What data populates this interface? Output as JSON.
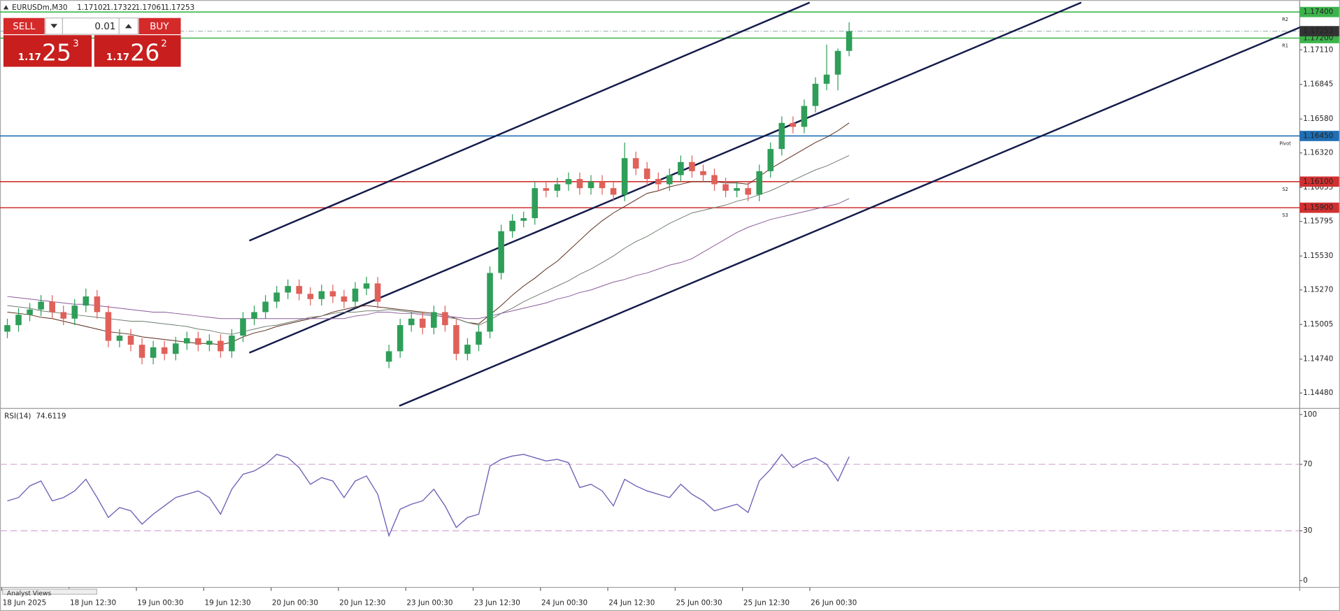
{
  "header": {
    "symbol": "EURUSDm,M30"
  },
  "trade_panel": {
    "sell": "SELL",
    "buy": "BUY",
    "lot": "0.01",
    "sell_price": {
      "lead": "1.17",
      "pips": "25",
      "point": "3"
    },
    "buy_price": {
      "lead": "1.17",
      "pips": "26",
      "point": "2"
    }
  },
  "tab": "Analyst Views",
  "chart_data": [
    {
      "type": "candlestick",
      "ylim": [
        1.14368,
        1.17492
      ],
      "yticks": [
        {
          "value": 1.1711,
          "label": "1.17110"
        },
        1.16845,
        {
          "value": 1.1658,
          "label": "1.16580"
        },
        {
          "value": 1.1632,
          "label": "1.16320"
        },
        1.16055,
        1.15795,
        {
          "value": 1.1553,
          "label": "1.15530"
        },
        {
          "value": 1.1527,
          "label": "1.15270"
        },
        1.15005,
        {
          "value": 1.1474,
          "label": "1.14740"
        },
        {
          "value": 1.1448,
          "label": "1.14480"
        }
      ],
      "current_price_color": "#333333",
      "levels": [
        {
          "value": 1.174,
          "label": "1.17400",
          "tag": "R2",
          "color": "#3cb44b"
        },
        {
          "value": 1.172,
          "label": "1.17200",
          "tag": "R1",
          "color": "#3cb44b"
        },
        {
          "value": 1.1645,
          "label": "1.16450",
          "tag": "Pivot",
          "color": "#1f6fb5"
        },
        {
          "value": 1.161,
          "label": "1.16100",
          "tag": "S2",
          "color": "#d03030"
        },
        {
          "value": 1.159,
          "label": "1.15900",
          "tag": "S3",
          "color": "#d03030"
        }
      ],
      "series": [
        {
          "up_color": "#2e9e58",
          "down_color": "#e0605a",
          "open": [
            1.1495,
            1.15,
            1.1508,
            1.1512,
            1.1518,
            1.151,
            1.1505,
            1.1515,
            1.1522,
            1.151,
            1.1488,
            1.1492,
            1.1485,
            1.1475,
            1.1483,
            1.1478,
            1.1486,
            1.149,
            1.1485,
            1.1488,
            1.148,
            1.1492,
            1.1505,
            1.151,
            1.1518,
            1.1525,
            1.153,
            1.1524,
            1.152,
            1.1526,
            1.1522,
            1.1518,
            1.1528,
            1.1532,
            1.1472,
            1.148,
            1.15,
            1.1505,
            1.1498,
            1.151,
            1.15,
            1.1478,
            1.1485,
            1.1495,
            1.154,
            1.1572,
            1.158,
            1.1582,
            1.1605,
            1.1603,
            1.1608,
            1.1612,
            1.1605,
            1.161,
            1.1605,
            1.16,
            1.1628,
            1.162,
            1.1612,
            1.1608,
            1.1615,
            1.1625,
            1.1618,
            1.1615,
            1.1608,
            1.1603,
            1.1605,
            1.16,
            1.1618,
            1.1635,
            1.1655,
            1.1652,
            1.1668,
            1.1685,
            1.1692,
            1.17102
          ],
          "high": [
            1.1505,
            1.1513,
            1.1517,
            1.1523,
            1.1523,
            1.1515,
            1.152,
            1.1528,
            1.1527,
            1.1515,
            1.1497,
            1.1497,
            1.149,
            1.1488,
            1.1488,
            1.1491,
            1.1495,
            1.1495,
            1.1493,
            1.1493,
            1.1497,
            1.151,
            1.1515,
            1.1523,
            1.153,
            1.1535,
            1.1535,
            1.1529,
            1.1531,
            1.1531,
            1.1527,
            1.1533,
            1.1537,
            1.1537,
            1.1485,
            1.1505,
            1.151,
            1.151,
            1.1515,
            1.1515,
            1.1505,
            1.149,
            1.15,
            1.1545,
            1.1577,
            1.1585,
            1.1587,
            1.161,
            1.161,
            1.1613,
            1.1617,
            1.1617,
            1.1615,
            1.1615,
            1.161,
            1.164,
            1.1633,
            1.1625,
            1.1617,
            1.162,
            1.163,
            1.163,
            1.1623,
            1.162,
            1.1613,
            1.161,
            1.161,
            1.1623,
            1.164,
            1.166,
            1.166,
            1.1673,
            1.169,
            1.1715,
            1.1712,
            1.17322
          ],
          "low": [
            1.149,
            1.1495,
            1.1503,
            1.1507,
            1.1505,
            1.15,
            1.15,
            1.151,
            1.1505,
            1.1483,
            1.1483,
            1.148,
            1.147,
            1.147,
            1.1473,
            1.1473,
            1.1481,
            1.148,
            1.148,
            1.1475,
            1.1475,
            1.1487,
            1.15,
            1.1505,
            1.1513,
            1.152,
            1.1519,
            1.1515,
            1.1515,
            1.1517,
            1.1513,
            1.1513,
            1.1523,
            1.1513,
            1.1467,
            1.1475,
            1.1495,
            1.1493,
            1.1493,
            1.1495,
            1.1473,
            1.1473,
            1.148,
            1.149,
            1.1535,
            1.1567,
            1.1575,
            1.1577,
            1.1598,
            1.1598,
            1.1603,
            1.16,
            1.16,
            1.16,
            1.1595,
            1.1595,
            1.1615,
            1.1607,
            1.1603,
            1.1603,
            1.161,
            1.1613,
            1.161,
            1.1603,
            1.1598,
            1.1598,
            1.1595,
            1.1595,
            1.1613,
            1.163,
            1.1647,
            1.1647,
            1.1663,
            1.168,
            1.168,
            1.17061
          ],
          "close": [
            1.15,
            1.1508,
            1.1512,
            1.1518,
            1.151,
            1.1505,
            1.1515,
            1.1522,
            1.151,
            1.1488,
            1.1492,
            1.1485,
            1.1475,
            1.1483,
            1.1478,
            1.1486,
            1.149,
            1.1485,
            1.1488,
            1.148,
            1.1492,
            1.1505,
            1.151,
            1.1518,
            1.1525,
            1.153,
            1.1524,
            1.152,
            1.1526,
            1.1522,
            1.1518,
            1.1528,
            1.1532,
            1.1518,
            1.148,
            1.15,
            1.1505,
            1.1498,
            1.151,
            1.15,
            1.1478,
            1.1485,
            1.1495,
            1.154,
            1.1572,
            1.158,
            1.1582,
            1.1605,
            1.1603,
            1.1608,
            1.1612,
            1.1605,
            1.161,
            1.1605,
            1.16,
            1.1628,
            1.162,
            1.1612,
            1.1608,
            1.1615,
            1.1625,
            1.1618,
            1.1615,
            1.1608,
            1.1603,
            1.1605,
            1.16,
            1.1618,
            1.1635,
            1.1655,
            1.1652,
            1.1668,
            1.1685,
            1.1692,
            1.17102,
            1.17253
          ]
        }
      ],
      "lines": [
        {
          "color": "#5a2a1a",
          "values": [
            1.151,
            1.1509,
            1.1508,
            1.1506,
            1.1505,
            1.1503,
            1.1501,
            1.1499,
            1.1497,
            1.1495,
            1.1494,
            1.1493,
            1.1491,
            1.149,
            1.1489,
            1.1488,
            1.1487,
            1.1486,
            1.1486,
            1.1485,
            1.1487,
            1.1491,
            1.1494,
            1.1496,
            1.1499,
            1.1501,
            1.1503,
            1.1505,
            1.1507,
            1.151,
            1.1512,
            1.1514,
            1.1515,
            1.1514,
            1.1513,
            1.1512,
            1.1511,
            1.151,
            1.1509,
            1.1508,
            1.1505,
            1.1502,
            1.1501,
            1.1508,
            1.1515,
            1.1523,
            1.153,
            1.1536,
            1.1543,
            1.1549,
            1.1557,
            1.1565,
            1.1573,
            1.158,
            1.1586,
            1.1591,
            1.1596,
            1.1601,
            1.1603,
            1.1606,
            1.1608,
            1.161,
            1.161,
            1.161,
            1.1609,
            1.1609,
            1.1608,
            1.1614,
            1.162,
            1.1625,
            1.163,
            1.1635,
            1.164,
            1.1644,
            1.1649,
            1.1655
          ]
        },
        {
          "color": "#6f7d6f",
          "values": [
            1.1515,
            1.1514,
            1.1513,
            1.1511,
            1.151,
            1.1509,
            1.1508,
            1.1507,
            1.1506,
            1.1505,
            1.1504,
            1.1503,
            1.1503,
            1.1502,
            1.1501,
            1.15,
            1.1499,
            1.1497,
            1.1496,
            1.1494,
            1.1493,
            1.1495,
            1.1497,
            1.1499,
            1.15,
            1.1502,
            1.1504,
            1.1506,
            1.1507,
            1.1509,
            1.151,
            1.151,
            1.1511,
            1.1511,
            1.1512,
            1.1511,
            1.151,
            1.1509,
            1.1508,
            1.1506,
            1.1505,
            1.1502,
            1.15,
            1.1504,
            1.1509,
            1.1513,
            1.1518,
            1.1522,
            1.1526,
            1.153,
            1.1534,
            1.1539,
            1.1543,
            1.1548,
            1.1553,
            1.1559,
            1.1564,
            1.1568,
            1.1573,
            1.1578,
            1.1582,
            1.1586,
            1.1588,
            1.159,
            1.1592,
            1.1595,
            1.1597,
            1.16,
            1.1603,
            1.1607,
            1.1611,
            1.1615,
            1.1619,
            1.1622,
            1.1626,
            1.163
          ]
        },
        {
          "color": "#8a5a9a",
          "values": [
            1.1522,
            1.1521,
            1.152,
            1.1519,
            1.1518,
            1.1517,
            1.1516,
            1.1516,
            1.1515,
            1.1514,
            1.1513,
            1.1512,
            1.1511,
            1.151,
            1.151,
            1.1509,
            1.1508,
            1.1507,
            1.1506,
            1.1505,
            1.1505,
            1.1505,
            1.1505,
            1.1505,
            1.1505,
            1.1505,
            1.1505,
            1.1505,
            1.1505,
            1.1505,
            1.1505,
            1.1507,
            1.1508,
            1.151,
            1.151,
            1.1509,
            1.1509,
            1.1508,
            1.1507,
            1.1507,
            1.1506,
            1.1505,
            1.1505,
            1.1507,
            1.1509,
            1.1511,
            1.1513,
            1.1515,
            1.1517,
            1.152,
            1.1522,
            1.1525,
            1.1527,
            1.153,
            1.1533,
            1.1535,
            1.1538,
            1.154,
            1.1543,
            1.1546,
            1.1548,
            1.1551,
            1.1556,
            1.1561,
            1.1566,
            1.1571,
            1.1575,
            1.1578,
            1.1581,
            1.1583,
            1.1585,
            1.1587,
            1.1589,
            1.1591,
            1.1593,
            1.1597
          ]
        }
      ]
    },
    {
      "type": "line",
      "title": "RSI(14)",
      "color": "#6c5fb5",
      "ylim": [
        -3.6,
        103.1
      ],
      "yticks": [
        0,
        30,
        70,
        100
      ],
      "dashed_levels": [
        30,
        70
      ],
      "level_color": "#d4a8d4",
      "categories": [
        "18 Jun 2025",
        null,
        null,
        null,
        null,
        null,
        "18 Jun 12:30",
        null,
        null,
        null,
        null,
        null,
        "19 Jun 00:30",
        null,
        null,
        null,
        null,
        null,
        "19 Jun 12:30",
        null,
        null,
        null,
        null,
        null,
        "20 Jun 00:30",
        null,
        null,
        null,
        null,
        null,
        "20 Jun 12:30",
        null,
        null,
        null,
        null,
        null,
        "23 Jun 00:30",
        null,
        null,
        null,
        null,
        null,
        "23 Jun 12:30",
        null,
        null,
        null,
        null,
        null,
        "24 Jun 00:30",
        null,
        null,
        null,
        null,
        null,
        "24 Jun 12:30",
        null,
        null,
        null,
        null,
        null,
        "25 Jun 00:30",
        null,
        null,
        null,
        null,
        null,
        "25 Jun 12:30",
        null,
        null,
        null,
        null,
        null,
        "26 Jun 00:30",
        null,
        null,
        null
      ],
      "values": [
        48,
        50,
        57,
        60,
        48,
        50,
        54,
        61,
        50,
        38,
        44,
        42,
        34,
        40,
        45,
        50,
        52,
        54,
        50,
        40,
        55,
        64,
        66,
        70,
        76,
        74,
        68,
        58,
        62,
        60,
        50,
        60,
        63,
        52,
        27,
        43,
        46,
        48,
        55,
        45,
        32,
        38,
        40,
        69,
        73,
        75,
        76,
        74,
        72,
        73,
        71,
        56,
        58,
        54,
        45,
        61,
        57,
        54,
        52,
        50,
        58,
        52,
        48,
        42,
        44,
        46,
        41,
        60,
        67,
        76,
        68,
        72,
        74,
        70,
        60,
        74.6119
      ]
    }
  ]
}
